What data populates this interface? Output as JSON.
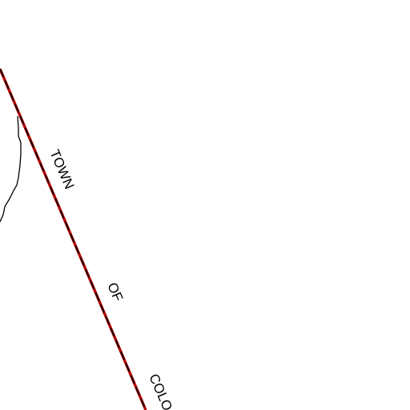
{
  "map": {
    "boundary_label": {
      "words": [
        "TOWN",
        "OF",
        "COLO"
      ]
    },
    "colors": {
      "background": "#ffffff",
      "boundary_fill": "#b30000",
      "boundary_dash": "#000000",
      "contour": "#000000",
      "label": "#000000"
    }
  }
}
